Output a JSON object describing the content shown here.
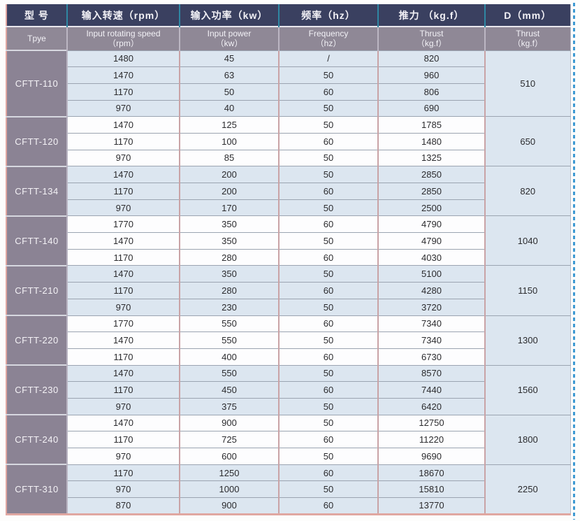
{
  "table": {
    "columns": [
      {
        "zh": "型 号",
        "en": "Tpye",
        "en2": ""
      },
      {
        "zh": "输入转速（rpm）",
        "en": "Input rotating speed",
        "en2": "（rpm）"
      },
      {
        "zh": "输入功率（kw）",
        "en": "Input power",
        "en2": "（kw）"
      },
      {
        "zh": "频率（hz）",
        "en": "Frequency",
        "en2": "（hz）"
      },
      {
        "zh": "推力 （kg.f）",
        "en": "Thrust",
        "en2": "（kg.f）"
      },
      {
        "zh": "D（mm）",
        "en": "Thrust",
        "en2": "（kg.f）"
      }
    ],
    "groups": [
      {
        "type": "CFTT-110",
        "d": "510",
        "shade": "blue",
        "rows": [
          [
            "1480",
            "45",
            "/",
            "820"
          ],
          [
            "1470",
            "63",
            "50",
            "960"
          ],
          [
            "1170",
            "50",
            "60",
            "806"
          ],
          [
            "970",
            "40",
            "50",
            "690"
          ]
        ]
      },
      {
        "type": "CFTT-120",
        "d": "650",
        "shade": "white",
        "rows": [
          [
            "1470",
            "125",
            "50",
            "1785"
          ],
          [
            "1170",
            "100",
            "60",
            "1480"
          ],
          [
            "970",
            "85",
            "50",
            "1325"
          ]
        ]
      },
      {
        "type": "CFTT-134",
        "d": "820",
        "shade": "blue",
        "rows": [
          [
            "1470",
            "200",
            "50",
            "2850"
          ],
          [
            "1170",
            "200",
            "60",
            "2850"
          ],
          [
            "970",
            "170",
            "50",
            "2500"
          ]
        ]
      },
      {
        "type": "CFTT-140",
        "d": "1040",
        "shade": "white",
        "rows": [
          [
            "1770",
            "350",
            "60",
            "4790"
          ],
          [
            "1470",
            "350",
            "50",
            "4790"
          ],
          [
            "1170",
            "280",
            "60",
            "4030"
          ]
        ]
      },
      {
        "type": "CFTT-210",
        "d": "1150",
        "shade": "blue",
        "rows": [
          [
            "1470",
            "350",
            "50",
            "5100"
          ],
          [
            "1170",
            "280",
            "60",
            "4280"
          ],
          [
            "970",
            "230",
            "50",
            "3720"
          ]
        ]
      },
      {
        "type": "CFTT-220",
        "d": "1300",
        "shade": "white",
        "rows": [
          [
            "1770",
            "550",
            "60",
            "7340"
          ],
          [
            "1470",
            "550",
            "50",
            "7340"
          ],
          [
            "1170",
            "400",
            "60",
            "6730"
          ]
        ]
      },
      {
        "type": "CFTT-230",
        "d": "1560",
        "shade": "blue",
        "rows": [
          [
            "1470",
            "550",
            "50",
            "8570"
          ],
          [
            "1170",
            "450",
            "60",
            "7440"
          ],
          [
            "970",
            "375",
            "50",
            "6420"
          ]
        ]
      },
      {
        "type": "CFTT-240",
        "d": "1800",
        "shade": "white",
        "rows": [
          [
            "1470",
            "900",
            "50",
            "12750"
          ],
          [
            "1170",
            "725",
            "60",
            "11220"
          ],
          [
            "970",
            "600",
            "50",
            "9690"
          ]
        ]
      },
      {
        "type": "CFTT-310",
        "d": "2250",
        "shade": "blue",
        "rows": [
          [
            "1170",
            "1250",
            "60",
            "18670"
          ],
          [
            "970",
            "1000",
            "50",
            "15810"
          ],
          [
            "870",
            "900",
            "60",
            "13770"
          ]
        ]
      }
    ],
    "colors": {
      "header_navy": "#3a4060",
      "header_teal_separator": "#2f87a3",
      "header_gray": "#8f8896",
      "type_column_gray": "#8b8394",
      "row_light_blue": "#dce6f0",
      "row_white": "#fdfdfe",
      "vertical_rule_pink": "#c9a3a6",
      "outer_rule_pink": "#e0a7a1",
      "crop_dash_blue": "#3f9ad2"
    }
  }
}
